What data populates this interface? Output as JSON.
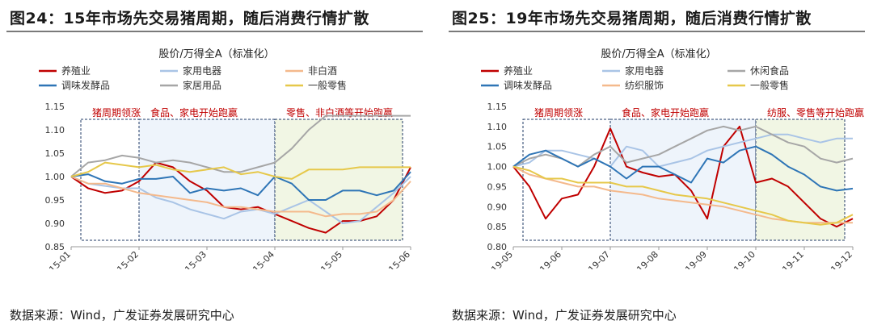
{
  "panels": [
    {
      "figure_title": "图24：15年市场先交易猪周期，随后消费行情扩散",
      "source": "数据来源：Wind，广发证券发展研究中心",
      "chart_data": {
        "type": "line",
        "title": "股价/万得全A（标准化）",
        "ylim": [
          0.85,
          1.15
        ],
        "yticks": [
          "0.85",
          "0.90",
          "0.95",
          "1.00",
          "1.05",
          "1.10",
          "1.15"
        ],
        "xticks": [
          "2015-01",
          "2015-02",
          "2015-03",
          "2015-04",
          "2015-05",
          "2015-06"
        ],
        "x": [
          "2015-01",
          "2015-01",
          "2015-01",
          "2015-02",
          "2015-02",
          "2015-02",
          "2015-02",
          "2015-03",
          "2015-03",
          "2015-03",
          "2015-03",
          "2015-04",
          "2015-04",
          "2015-04",
          "2015-04",
          "2015-05",
          "2015-05",
          "2015-05",
          "2015-05",
          "2015-06",
          "2015-06"
        ],
        "series": [
          {
            "name": "养殖业",
            "color": "#c00000",
            "values": [
              1.0,
              0.975,
              0.965,
              0.97,
              0.99,
              1.03,
              1.02,
              0.99,
              0.97,
              0.935,
              0.93,
              0.935,
              0.92,
              0.905,
              0.89,
              0.88,
              0.905,
              0.905,
              0.915,
              0.95,
              1.02
            ]
          },
          {
            "name": "家用电器",
            "color": "#a9c4e6",
            "values": [
              1.0,
              0.985,
              0.98,
              0.975,
              0.975,
              0.955,
              0.945,
              0.93,
              0.92,
              0.91,
              0.925,
              0.93,
              0.92,
              0.935,
              0.95,
              0.925,
              0.9,
              0.905,
              0.935,
              0.965,
              1.0
            ]
          },
          {
            "name": "非白酒",
            "color": "#f4b98c",
            "values": [
              1.0,
              0.985,
              0.985,
              0.975,
              0.965,
              0.96,
              0.955,
              0.95,
              0.945,
              0.935,
              0.935,
              0.93,
              0.925,
              0.925,
              0.925,
              0.915,
              0.92,
              0.92,
              0.925,
              0.95,
              0.99
            ]
          },
          {
            "name": "调味发酵品",
            "color": "#2e75b6",
            "values": [
              1.0,
              1.005,
              0.99,
              0.985,
              0.995,
              0.995,
              1.0,
              0.965,
              0.975,
              0.97,
              0.975,
              0.96,
              1.0,
              0.985,
              0.95,
              0.95,
              0.97,
              0.97,
              0.96,
              0.97,
              1.01
            ]
          },
          {
            "name": "家居用品",
            "color": "#a6a6a6",
            "values": [
              1.0,
              1.03,
              1.035,
              1.045,
              1.04,
              1.03,
              1.035,
              1.03,
              1.02,
              1.01,
              1.01,
              1.02,
              1.03,
              1.06,
              1.1,
              1.13,
              1.13,
              1.13,
              1.13,
              1.13,
              1.13
            ]
          },
          {
            "name": "一般零售",
            "color": "#e6c84a",
            "values": [
              1.0,
              1.01,
              1.03,
              1.025,
              1.02,
              1.025,
              1.015,
              1.01,
              1.015,
              1.02,
              1.005,
              1.01,
              1.0,
              0.995,
              1.015,
              1.015,
              1.015,
              1.02,
              1.02,
              1.02,
              1.02
            ]
          }
        ],
        "phases": [
          {
            "label": "猪周期领涨",
            "from": "2015-01",
            "to": "2015-02",
            "shade": "#ffffff"
          },
          {
            "label": "食品、家电开始跑赢",
            "from": "2015-02",
            "to": "2015-04",
            "shade": "#eef4fb"
          },
          {
            "label": "零售、非白酒等开始跑赢",
            "from": "2015-04",
            "to": "2015-06",
            "shade": "#f1f6e4"
          }
        ],
        "legend_position": "top"
      }
    },
    {
      "figure_title": "图25：19年市场先交易猪周期，随后消费行情扩散",
      "source": "数据来源：Wind，广发证券发展研究中心",
      "chart_data": {
        "type": "line",
        "title": "股价/万得全A（标准化）",
        "ylim": [
          0.8,
          1.15
        ],
        "yticks": [
          "0.80",
          "0.85",
          "0.90",
          "0.95",
          "1.00",
          "1.05",
          "1.10",
          "1.15"
        ],
        "xticks": [
          "2019-05",
          "2019-06",
          "2019-07",
          "2019-08",
          "2019-09",
          "2019-10",
          "2019-11",
          "2019-12"
        ],
        "x": [
          "2019-05",
          "2019-05",
          "2019-06",
          "2019-06",
          "2019-06",
          "2019-07",
          "2019-07",
          "2019-07",
          "2019-08",
          "2019-08",
          "2019-08",
          "2019-09",
          "2019-09",
          "2019-09",
          "2019-10",
          "2019-10",
          "2019-10",
          "2019-11",
          "2019-11",
          "2019-11",
          "2019-12",
          "2019-12"
        ],
        "series": [
          {
            "name": "养殖业",
            "color": "#c00000",
            "values": [
              1.0,
              0.95,
              0.87,
              0.92,
              0.93,
              1.0,
              1.095,
              1.0,
              0.985,
              0.975,
              0.98,
              0.94,
              0.87,
              1.05,
              1.1,
              0.96,
              0.97,
              0.95,
              0.91,
              0.87,
              0.85,
              0.87
            ]
          },
          {
            "name": "家用电器",
            "color": "#a9c4e6",
            "values": [
              1.0,
              1.01,
              1.04,
              1.04,
              1.03,
              1.02,
              1.0,
              1.05,
              1.04,
              1.0,
              1.01,
              1.02,
              1.04,
              1.05,
              1.06,
              1.07,
              1.08,
              1.08,
              1.07,
              1.06,
              1.07,
              1.07
            ]
          },
          {
            "name": "休闲食品",
            "color": "#a6a6a6",
            "values": [
              1.0,
              1.02,
              1.03,
              1.02,
              1.0,
              1.03,
              1.05,
              1.01,
              1.02,
              1.03,
              1.05,
              1.07,
              1.09,
              1.1,
              1.09,
              1.1,
              1.08,
              1.06,
              1.05,
              1.02,
              1.01,
              1.02
            ]
          },
          {
            "name": "调味发酵品",
            "color": "#2e75b6",
            "values": [
              1.0,
              1.03,
              1.04,
              1.02,
              1.0,
              1.02,
              1.0,
              0.97,
              1.0,
              1.0,
              0.98,
              0.96,
              1.02,
              1.01,
              1.04,
              1.05,
              1.03,
              1.0,
              0.98,
              0.95,
              0.94,
              0.945
            ]
          },
          {
            "name": "纺织服饰",
            "color": "#f4b98c",
            "values": [
              1.0,
              0.98,
              0.97,
              0.96,
              0.95,
              0.95,
              0.94,
              0.935,
              0.93,
              0.92,
              0.915,
              0.91,
              0.905,
              0.9,
              0.89,
              0.88,
              0.87,
              0.865,
              0.86,
              0.86,
              0.86,
              0.86
            ]
          },
          {
            "name": "一般零售",
            "color": "#e6c84a",
            "values": [
              1.0,
              0.99,
              0.97,
              0.97,
              0.96,
              0.96,
              0.96,
              0.95,
              0.95,
              0.94,
              0.93,
              0.925,
              0.92,
              0.91,
              0.9,
              0.89,
              0.88,
              0.865,
              0.86,
              0.855,
              0.86,
              0.88
            ]
          }
        ],
        "phases": [
          {
            "label": "猪周期领涨",
            "from": "2019-05",
            "to": "2019-07",
            "shade": "#ffffff"
          },
          {
            "label": "食品、家电开始跑赢",
            "from": "2019-07",
            "to": "2019-10",
            "shade": "#eef4fb"
          },
          {
            "label": "纺服、零售等开始跑赢",
            "from": "2019-10",
            "to": "2019-12",
            "shade": "#f1f6e4"
          }
        ],
        "legend_position": "top"
      }
    }
  ]
}
